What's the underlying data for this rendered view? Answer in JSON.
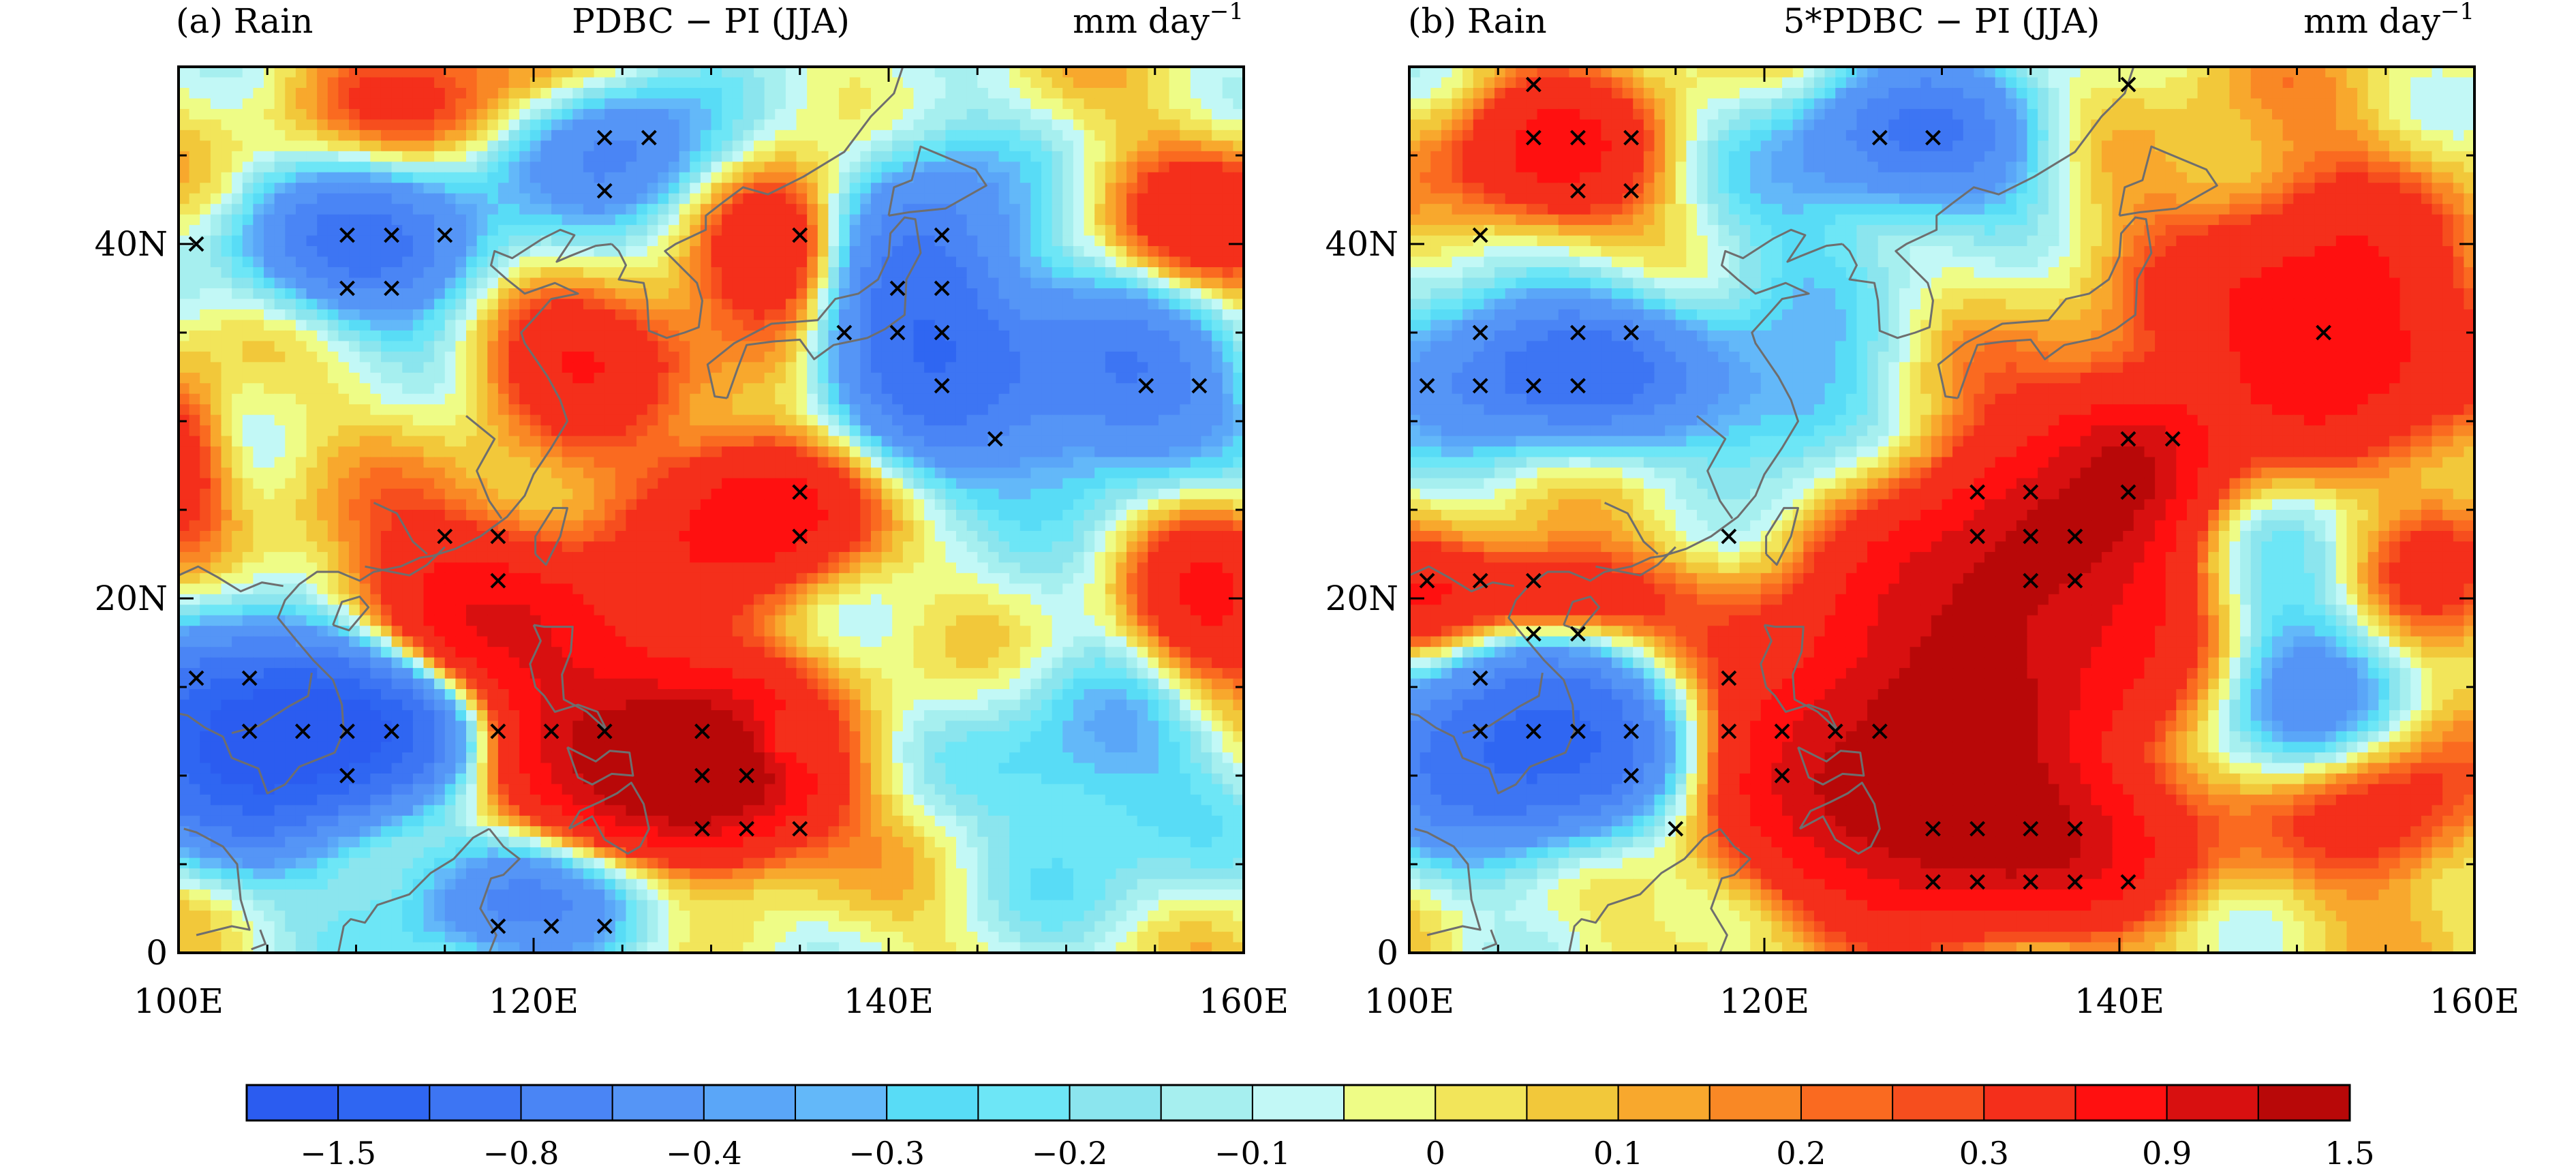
{
  "chart_data": [
    {
      "type": "heatmap",
      "panel_label": "(a) Rain",
      "title": "PDBC − PI (JJA)",
      "units_base": "mm day",
      "units_exp": "−1",
      "xlabel": "",
      "ylabel": "",
      "xlim": [
        100,
        160
      ],
      "ylim": [
        0,
        50
      ],
      "x_ticks": [
        "100E",
        "120E",
        "140E",
        "160E"
      ],
      "y_ticks": [
        "0",
        "20N",
        "40N"
      ],
      "blobs": [
        {
          "lon": 104,
          "lat": 12,
          "amp": -1.5,
          "sx": 5,
          "sy": 4
        },
        {
          "lon": 111,
          "lat": 13,
          "amp": -1.3,
          "sx": 5,
          "sy": 3
        },
        {
          "lon": 111,
          "lat": 40,
          "amp": -0.9,
          "sx": 5,
          "sy": 3
        },
        {
          "lon": 125,
          "lat": 45,
          "amp": -0.7,
          "sx": 4,
          "sy": 3
        },
        {
          "lon": 142,
          "lat": 36,
          "amp": -1.1,
          "sx": 4,
          "sy": 6
        },
        {
          "lon": 153,
          "lat": 32,
          "amp": -0.8,
          "sx": 5,
          "sy": 4
        },
        {
          "lon": 120,
          "lat": 3,
          "amp": -0.6,
          "sx": 6,
          "sy": 3
        },
        {
          "lon": 152,
          "lat": 10,
          "amp": -0.4,
          "sx": 5,
          "sy": 5
        },
        {
          "lon": 117,
          "lat": 19,
          "amp": 0.8,
          "sx": 6,
          "sy": 4
        },
        {
          "lon": 124,
          "lat": 12,
          "amp": 1.0,
          "sx": 6,
          "sy": 4
        },
        {
          "lon": 130,
          "lat": 10,
          "amp": 1.5,
          "sx": 4,
          "sy": 3
        },
        {
          "lon": 133,
          "lat": 25,
          "amp": 0.9,
          "sx": 4,
          "sy": 3
        },
        {
          "lon": 123,
          "lat": 34,
          "amp": 0.6,
          "sx": 4,
          "sy": 3
        },
        {
          "lon": 134,
          "lat": 40,
          "amp": 0.7,
          "sx": 3,
          "sy": 3
        },
        {
          "lon": 158,
          "lat": 20,
          "amp": 0.6,
          "sx": 3,
          "sy": 4
        },
        {
          "lon": 158,
          "lat": 41,
          "amp": 0.5,
          "sx": 4,
          "sy": 3
        },
        {
          "lon": 115,
          "lat": 48,
          "amp": 0.3,
          "sx": 6,
          "sy": 3
        },
        {
          "lon": 100,
          "lat": 28,
          "amp": 0.5,
          "sx": 2,
          "sy": 3
        },
        {
          "lon": 134,
          "lat": 12,
          "amp": -0.6,
          "sx": 1.5,
          "sy": 1.2
        }
      ],
      "significance": [
        [
          101,
          40
        ],
        [
          109.5,
          37.5
        ],
        [
          109.5,
          40.5
        ],
        [
          112,
          37.5
        ],
        [
          112,
          40.5
        ],
        [
          115,
          40.5
        ],
        [
          124,
          43
        ],
        [
          124,
          46
        ],
        [
          126.5,
          46
        ],
        [
          135,
          40.5
        ],
        [
          137.5,
          35
        ],
        [
          140.5,
          35
        ],
        [
          140.5,
          37.5
        ],
        [
          143,
          32
        ],
        [
          143,
          35
        ],
        [
          143,
          37.5
        ],
        [
          143,
          40.5
        ],
        [
          146,
          29
        ],
        [
          154.5,
          32
        ],
        [
          157.5,
          32
        ],
        [
          115,
          23.5
        ],
        [
          118,
          23.5
        ],
        [
          118,
          21
        ],
        [
          135,
          26
        ],
        [
          135,
          23.5
        ],
        [
          101,
          15.5
        ],
        [
          104,
          15.5
        ],
        [
          104,
          12.5
        ],
        [
          107,
          12.5
        ],
        [
          109.5,
          12.5
        ],
        [
          112,
          12.5
        ],
        [
          109.5,
          10
        ],
        [
          118,
          12.5
        ],
        [
          121,
          12.5
        ],
        [
          124,
          12.5
        ],
        [
          129.5,
          12.5
        ],
        [
          129.5,
          10
        ],
        [
          132,
          10
        ],
        [
          129.5,
          7
        ],
        [
          132,
          7
        ],
        [
          135,
          7
        ],
        [
          118,
          1.5
        ],
        [
          121,
          1.5
        ],
        [
          124,
          1.5
        ]
      ]
    },
    {
      "type": "heatmap",
      "panel_label": "(b) Rain",
      "title": "5*PDBC − PI (JJA)",
      "units_base": "mm day",
      "units_exp": "−1",
      "xlabel": "",
      "ylabel": "",
      "xlim": [
        100,
        160
      ],
      "ylim": [
        0,
        50
      ],
      "x_ticks": [
        "100E",
        "120E",
        "140E",
        "160E"
      ],
      "y_ticks": [
        "0",
        "20N",
        "40N"
      ],
      "blobs": [
        {
          "lon": 107,
          "lat": 12,
          "amp": -1.4,
          "sx": 6,
          "sy": 4
        },
        {
          "lon": 108,
          "lat": 33,
          "amp": -1.0,
          "sx": 6,
          "sy": 3
        },
        {
          "lon": 129,
          "lat": 46,
          "amp": -0.8,
          "sx": 5,
          "sy": 3
        },
        {
          "lon": 122,
          "lat": 30,
          "amp": -0.4,
          "sx": 4,
          "sy": 3
        },
        {
          "lon": 150,
          "lat": 14,
          "amp": -0.5,
          "sx": 4,
          "sy": 4
        },
        {
          "lon": 150,
          "lat": 25,
          "amp": -0.3,
          "sx": 4,
          "sy": 4
        },
        {
          "lon": 108,
          "lat": 45,
          "amp": 0.7,
          "sx": 4,
          "sy": 3
        },
        {
          "lon": 128,
          "lat": 12,
          "amp": 1.3,
          "sx": 8,
          "sy": 5
        },
        {
          "lon": 135,
          "lat": 22,
          "amp": 1.2,
          "sx": 6,
          "sy": 5
        },
        {
          "lon": 133,
          "lat": 6,
          "amp": 1.0,
          "sx": 7,
          "sy": 3
        },
        {
          "lon": 141,
          "lat": 28,
          "amp": 0.9,
          "sx": 3,
          "sy": 3
        },
        {
          "lon": 152,
          "lat": 34,
          "amp": 0.8,
          "sx": 5,
          "sy": 5
        },
        {
          "lon": 107,
          "lat": 20,
          "amp": 0.7,
          "sx": 5,
          "sy": 2
        },
        {
          "lon": 100,
          "lat": 19,
          "amp": 0.4,
          "sx": 3,
          "sy": 3
        },
        {
          "lon": 158,
          "lat": 22,
          "amp": 0.4,
          "sx": 3,
          "sy": 3
        },
        {
          "lon": 148,
          "lat": 40,
          "amp": 0.2,
          "sx": 8,
          "sy": 6
        },
        {
          "lon": 122,
          "lat": 40,
          "amp": -0.2,
          "sx": 5,
          "sy": 4
        },
        {
          "lon": 155,
          "lat": 8,
          "amp": 0.5,
          "sx": 4,
          "sy": 3
        }
      ],
      "significance": [
        [
          107,
          49
        ],
        [
          107,
          46
        ],
        [
          109.5,
          46
        ],
        [
          112.5,
          46
        ],
        [
          109.5,
          43
        ],
        [
          112.5,
          43
        ],
        [
          104,
          40.5
        ],
        [
          104,
          35
        ],
        [
          107,
          32
        ],
        [
          109.5,
          35
        ],
        [
          112.5,
          35
        ],
        [
          101,
          32
        ],
        [
          104,
          32
        ],
        [
          109.5,
          32
        ],
        [
          126.5,
          46
        ],
        [
          129.5,
          46
        ],
        [
          140.5,
          49
        ],
        [
          151.5,
          35
        ],
        [
          140.5,
          29
        ],
        [
          143,
          29
        ],
        [
          140.5,
          26
        ],
        [
          132,
          26
        ],
        [
          135,
          26
        ],
        [
          132,
          23.5
        ],
        [
          135,
          23.5
        ],
        [
          137.5,
          23.5
        ],
        [
          135,
          21
        ],
        [
          137.5,
          21
        ],
        [
          118,
          23.5
        ],
        [
          101,
          21
        ],
        [
          104,
          21
        ],
        [
          107,
          21
        ],
        [
          107,
          18
        ],
        [
          109.5,
          18
        ],
        [
          104,
          15.5
        ],
        [
          104,
          12.5
        ],
        [
          107,
          12.5
        ],
        [
          109.5,
          12.5
        ],
        [
          112.5,
          12.5
        ],
        [
          112.5,
          10
        ],
        [
          115,
          7
        ],
        [
          118,
          15.5
        ],
        [
          118,
          12.5
        ],
        [
          121,
          12.5
        ],
        [
          124,
          12.5
        ],
        [
          126.5,
          12.5
        ],
        [
          121,
          10
        ],
        [
          129.5,
          7
        ],
        [
          132,
          7
        ],
        [
          135,
          7
        ],
        [
          137.5,
          7
        ],
        [
          129.5,
          4
        ],
        [
          132,
          4
        ],
        [
          135,
          4
        ],
        [
          137.5,
          4
        ],
        [
          140.5,
          4
        ]
      ]
    }
  ],
  "colorbar": {
    "colors": [
      "#2b5cf0",
      "#2f66f2",
      "#3d75f3",
      "#4a85f5",
      "#5595f6",
      "#5aa6f8",
      "#63b8f9",
      "#58dcf6",
      "#6de6f6",
      "#8be5ee",
      "#a6efef",
      "#c2f8f6",
      "#eefc86",
      "#f2e55a",
      "#f2c83a",
      "#f8a82d",
      "#f98825",
      "#fa6a20",
      "#f64e1e",
      "#f42f1b",
      "#ff1010",
      "#d81010",
      "#b80808"
    ],
    "thresholds": [
      -1.5,
      -1.15,
      -0.8,
      -0.6,
      -0.4,
      -0.35,
      -0.3,
      -0.25,
      -0.2,
      -0.15,
      -0.1,
      -0.05,
      0,
      0.05,
      0.1,
      0.15,
      0.2,
      0.25,
      0.3,
      0.6,
      0.9,
      1.2,
      1.5
    ],
    "labels": [
      "−1.5",
      "−0.8",
      "−0.4",
      "−0.3",
      "−0.2",
      "−0.1",
      "0",
      "0.1",
      "0.2",
      "0.3",
      "0.9",
      "1.5"
    ]
  }
}
